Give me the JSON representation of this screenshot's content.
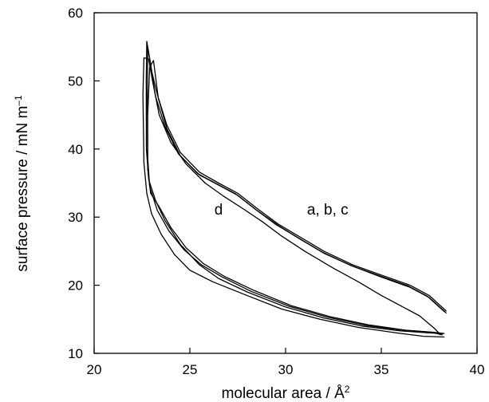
{
  "chart_data": {
    "type": "line",
    "xlabel": "molecular area / Å",
    "xlabel_sup": "2",
    "ylabel": "surface pressure / mN m",
    "ylabel_sup": "–1",
    "xlim": [
      20,
      40
    ],
    "ylim": [
      10,
      60
    ],
    "x_ticks": [
      "20",
      "25",
      "30",
      "35",
      "40"
    ],
    "y_ticks": [
      "10",
      "20",
      "30",
      "40",
      "50",
      "60"
    ],
    "grid": false,
    "legend": "none",
    "annotations": [
      {
        "text": "d",
        "x": 26.5,
        "y": 30.4
      },
      {
        "text": "a, b, c",
        "x": 32.2,
        "y": 30.4
      }
    ],
    "series": [
      {
        "label": "a",
        "points": [
          [
            38.4,
            16.2
          ],
          [
            37.5,
            18.5
          ],
          [
            36.5,
            20.0
          ],
          [
            35.0,
            21.5
          ],
          [
            33.5,
            23.0
          ],
          [
            32.0,
            25.0
          ],
          [
            30.8,
            27.0
          ],
          [
            29.6,
            29.0
          ],
          [
            28.5,
            31.3
          ],
          [
            27.5,
            33.5
          ],
          [
            26.5,
            35.0
          ],
          [
            25.5,
            36.6
          ],
          [
            24.5,
            39.5
          ],
          [
            23.8,
            43.5
          ],
          [
            23.3,
            48.0
          ],
          [
            23.0,
            51.5
          ],
          [
            22.75,
            55.8
          ],
          [
            22.72,
            50.0
          ],
          [
            22.73,
            40.0
          ],
          [
            22.85,
            35.5
          ],
          [
            23.2,
            32.5
          ],
          [
            23.7,
            29.5
          ],
          [
            24.5,
            26.0
          ],
          [
            25.5,
            23.0
          ],
          [
            26.5,
            21.0
          ],
          [
            28.0,
            19.0
          ],
          [
            30.0,
            16.8
          ],
          [
            32.0,
            15.2
          ],
          [
            34.0,
            14.0
          ],
          [
            36.0,
            13.3
          ],
          [
            37.5,
            13.0
          ],
          [
            38.2,
            12.9
          ]
        ]
      },
      {
        "label": "b",
        "points": [
          [
            38.4,
            15.9
          ],
          [
            37.5,
            18.2
          ],
          [
            36.5,
            19.7
          ],
          [
            35.0,
            21.2
          ],
          [
            33.5,
            22.8
          ],
          [
            32.0,
            24.7
          ],
          [
            30.8,
            26.7
          ],
          [
            29.6,
            28.8
          ],
          [
            28.5,
            31.0
          ],
          [
            27.5,
            33.2
          ],
          [
            26.5,
            34.7
          ],
          [
            25.5,
            36.2
          ],
          [
            24.5,
            39.0
          ],
          [
            23.8,
            43.0
          ],
          [
            23.35,
            47.5
          ],
          [
            23.1,
            53.0
          ],
          [
            22.9,
            52.0
          ],
          [
            22.8,
            45.0
          ],
          [
            22.8,
            37.0
          ],
          [
            22.95,
            33.5
          ],
          [
            23.4,
            31.5
          ],
          [
            24.0,
            28.5
          ],
          [
            24.8,
            25.5
          ],
          [
            25.7,
            23.2
          ],
          [
            26.8,
            21.3
          ],
          [
            28.3,
            19.3
          ],
          [
            30.3,
            17.0
          ],
          [
            32.3,
            15.4
          ],
          [
            34.3,
            14.2
          ],
          [
            36.3,
            13.4
          ],
          [
            37.7,
            13.1
          ],
          [
            38.3,
            12.9
          ]
        ]
      },
      {
        "label": "c",
        "points": [
          [
            38.3,
            16.1
          ],
          [
            37.4,
            18.4
          ],
          [
            36.4,
            19.9
          ],
          [
            34.9,
            21.4
          ],
          [
            33.4,
            22.9
          ],
          [
            31.9,
            24.9
          ],
          [
            30.7,
            26.9
          ],
          [
            29.5,
            28.9
          ],
          [
            28.4,
            31.2
          ],
          [
            27.4,
            33.4
          ],
          [
            26.4,
            34.9
          ],
          [
            25.4,
            36.4
          ],
          [
            24.4,
            39.3
          ],
          [
            23.7,
            43.3
          ],
          [
            23.2,
            47.8
          ],
          [
            22.95,
            52.5
          ],
          [
            22.8,
            55.0
          ],
          [
            22.78,
            48.0
          ],
          [
            22.79,
            39.0
          ],
          [
            22.9,
            34.5
          ],
          [
            23.3,
            31.0
          ],
          [
            23.9,
            28.0
          ],
          [
            24.7,
            25.2
          ],
          [
            25.6,
            23.0
          ],
          [
            26.7,
            21.2
          ],
          [
            28.2,
            19.1
          ],
          [
            30.2,
            16.9
          ],
          [
            32.2,
            15.3
          ],
          [
            34.2,
            14.1
          ],
          [
            36.2,
            13.4
          ],
          [
            37.6,
            13.1
          ],
          [
            38.2,
            12.7
          ]
        ]
      },
      {
        "label": "d",
        "points": [
          [
            38.1,
            12.7
          ],
          [
            37.8,
            13.6
          ],
          [
            37.0,
            15.5
          ],
          [
            36.0,
            17.0
          ],
          [
            35.0,
            18.5
          ],
          [
            33.8,
            20.5
          ],
          [
            32.5,
            22.5
          ],
          [
            31.0,
            25.0
          ],
          [
            29.8,
            27.2
          ],
          [
            28.8,
            29.3
          ],
          [
            27.8,
            31.2
          ],
          [
            26.8,
            33.0
          ],
          [
            25.8,
            35.0
          ],
          [
            24.8,
            37.8
          ],
          [
            24.0,
            41.0
          ],
          [
            23.4,
            45.0
          ],
          [
            23.05,
            50.0
          ],
          [
            22.85,
            53.2
          ],
          [
            22.6,
            53.4
          ],
          [
            22.55,
            48.0
          ],
          [
            22.6,
            38.0
          ],
          [
            22.75,
            33.5
          ],
          [
            23.0,
            30.5
          ],
          [
            23.5,
            27.5
          ],
          [
            24.2,
            24.5
          ],
          [
            25.0,
            22.2
          ],
          [
            26.2,
            20.5
          ],
          [
            27.8,
            18.7
          ],
          [
            29.8,
            16.5
          ],
          [
            31.8,
            15.0
          ],
          [
            33.8,
            13.8
          ],
          [
            35.8,
            13.0
          ],
          [
            37.2,
            12.5
          ],
          [
            38.3,
            12.4
          ]
        ]
      }
    ]
  }
}
